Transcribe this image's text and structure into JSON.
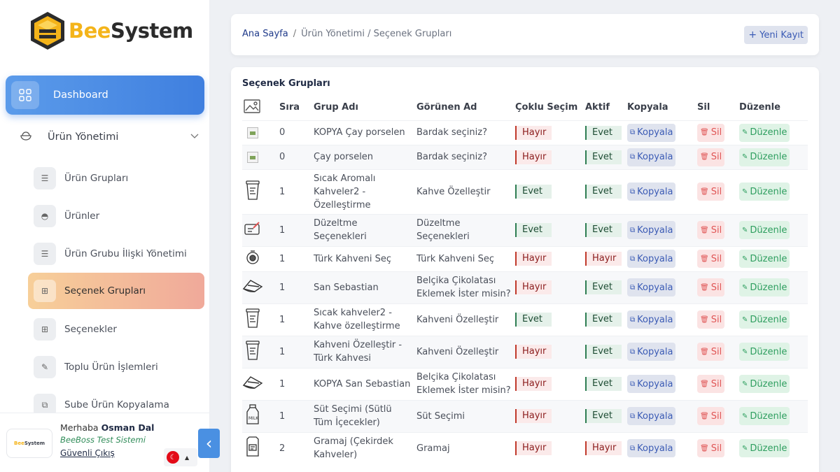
{
  "brand": {
    "bee": "Bee",
    "system": "System",
    "small_bee": "Bee",
    "small_system": "System"
  },
  "sidebar": {
    "dashboard": "Dashboard",
    "group": "Ürün Yönetimi",
    "items": [
      {
        "label": "Ürün Grupları",
        "icon": "list-icon"
      },
      {
        "label": "Ürünler",
        "icon": "bowl-icon"
      },
      {
        "label": "Ürün Grubu İlişki Yönetimi",
        "icon": "list-icon"
      },
      {
        "label": "Seçenek Grupları",
        "icon": "plus-square-icon",
        "active": true
      },
      {
        "label": "Seçenekler",
        "icon": "plus-square-icon"
      },
      {
        "label": "Toplu Ürün İşlemleri",
        "icon": "pencil-icon"
      },
      {
        "label": "Sube Ürün Kopyalama",
        "icon": "copy-icon"
      }
    ]
  },
  "user": {
    "greeting": "Merhaba",
    "name": "Osman Dal",
    "system": "BeeBoss Test Sistemi",
    "logout": "Güvenli Çıkış",
    "flag": "☾"
  },
  "breadcrumb": {
    "home": "Ana Sayfa",
    "sep": "/",
    "path": "Ürün Yönetimi / Seçenek Grupları"
  },
  "new_button": "Yeni Kayıt",
  "card_title": "Seçenek Grupları",
  "columns": [
    "Sıra",
    "Grup Adı",
    "Görünen Ad",
    "Çoklu Seçim",
    "Aktif",
    "Kopyala",
    "Sil",
    "Düzenle"
  ],
  "actions": {
    "copy": "Kopyala",
    "delete": "Sil",
    "edit": "Düzenle"
  },
  "rows": [
    {
      "img": "broken-image-icon",
      "sira": "0",
      "grup": "KOPYA Çay porselen",
      "gorunen": "Bardak seçiniz?",
      "coklu": "Hayır",
      "aktif": "Evet",
      "h": 35
    },
    {
      "img": "broken-image-icon",
      "sira": "0",
      "grup": "Çay porselen",
      "gorunen": "Bardak seçiniz?",
      "coklu": "Hayır",
      "aktif": "Evet",
      "h": 35
    },
    {
      "img": "cup-icon",
      "sira": "1",
      "grup": "Sıcak Aromalı Kahveler2 - Özelleştirme",
      "gorunen": "Kahve Özelleştir",
      "coklu": "Evet",
      "aktif": "Evet",
      "h": 64
    },
    {
      "img": "edit-card-icon",
      "sira": "1",
      "grup": "Düzeltme Seçenekleri",
      "gorunen": "Düzeltme Seçenekleri",
      "coklu": "Evet",
      "aktif": "Evet",
      "h": 46
    },
    {
      "img": "coffee-pot-icon",
      "sira": "1",
      "grup": "Türk Kahveni Seç",
      "gorunen": "Türk Kahveni Seç",
      "coklu": "Hayır",
      "aktif": "Hayır",
      "h": 36
    },
    {
      "img": "cake-icon",
      "sira": "1",
      "grup": "San Sebastian",
      "gorunen": "Belçika Çikolatası Eklemek İster misin?",
      "coklu": "Hayır",
      "aktif": "Evet",
      "h": 46
    },
    {
      "img": "cup-icon",
      "sira": "1",
      "grup": "Sıcak kahveler2 - Kahve özelleştirme",
      "gorunen": "Kahveni Özelleştir",
      "coklu": "Evet",
      "aktif": "Evet",
      "h": 46
    },
    {
      "img": "cup-icon",
      "sira": "1",
      "grup": "Kahveni Özelleştir - Türk Kahvesi",
      "gorunen": "Kahveni Özelleştir",
      "coklu": "Hayır",
      "aktif": "Evet",
      "h": 46
    },
    {
      "img": "cake-icon",
      "sira": "1",
      "grup": "KOPYA San Sebastian",
      "gorunen": "Belçika Çikolatası Eklemek İster misin?",
      "coklu": "Hayır",
      "aktif": "Evet",
      "h": 46
    },
    {
      "img": "milk-icon",
      "sira": "1",
      "grup": "Süt Seçimi (Sütlü Tüm İçecekler)",
      "gorunen": "Süt Seçimi",
      "coklu": "Hayır",
      "aktif": "Evet",
      "h": 46
    },
    {
      "img": "coffee-bag-icon",
      "sira": "2",
      "grup": "Gramaj (Çekirdek Kahveler)",
      "gorunen": "Gramaj",
      "coklu": "Hayır",
      "aktif": "Hayır",
      "h": 46
    }
  ],
  "colors": {
    "primary": "#4a90e2",
    "accent_gold": "#f4b41a",
    "active_from": "#f7cf99",
    "active_to": "#f0a99a"
  }
}
